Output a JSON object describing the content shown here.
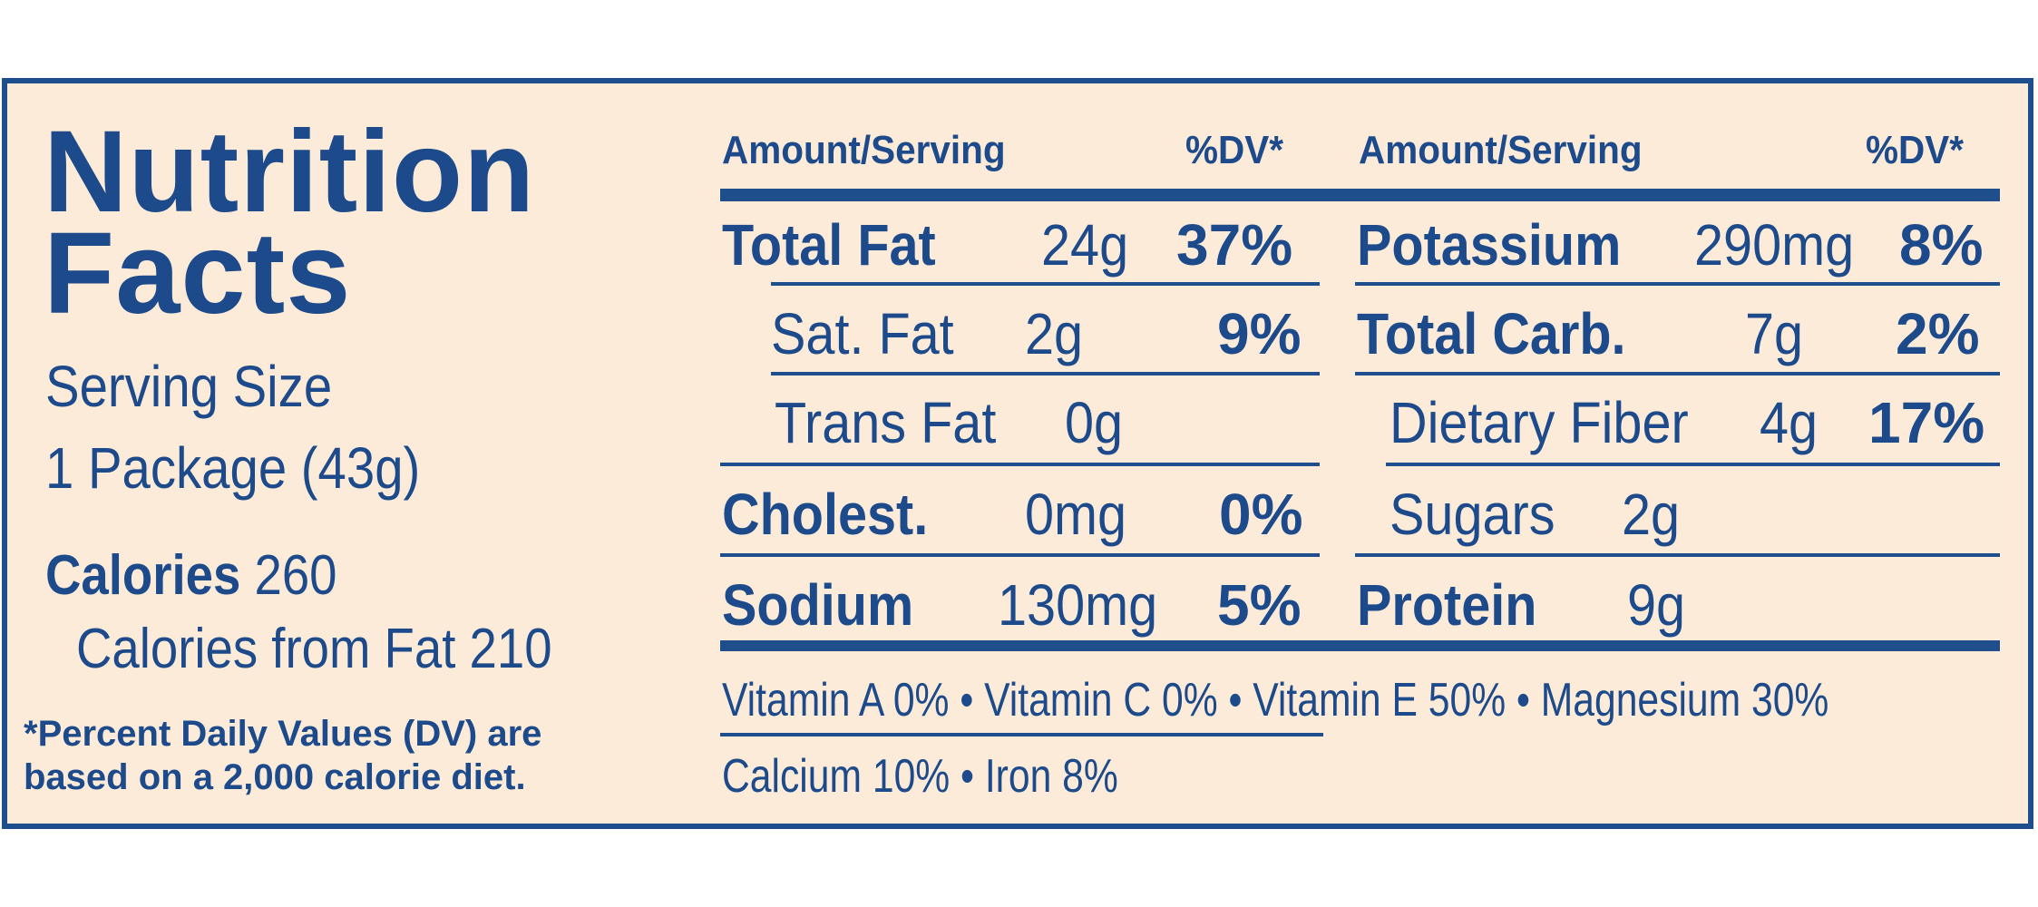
{
  "title": {
    "line1": "Nutrition",
    "line2": "Facts"
  },
  "serving": {
    "label": "Serving Size",
    "value": "1 Package (43g)"
  },
  "calories": {
    "label": "Calories",
    "value": "260",
    "from_fat": "Calories from Fat 210"
  },
  "footnote": {
    "line1": "*Percent Daily Values (DV) are",
    "line2": "based on a 2,000 calorie diet."
  },
  "headers": {
    "amount": "Amount/Serving",
    "dv": "%DV*"
  },
  "left_rows": [
    {
      "name": "Total Fat",
      "amount": "24g",
      "dv": "37%"
    },
    {
      "name": "Sat. Fat",
      "amount": "2g",
      "dv": "9%"
    },
    {
      "name": "Trans Fat",
      "amount": "0g",
      "dv": ""
    },
    {
      "name": "Cholest.",
      "amount": "0mg",
      "dv": "0%"
    },
    {
      "name": "Sodium",
      "amount": "130mg",
      "dv": "5%"
    }
  ],
  "right_rows": [
    {
      "name": "Potassium",
      "amount": "290mg",
      "dv": "8%"
    },
    {
      "name": "Total Carb.",
      "amount": "7g",
      "dv": "2%"
    },
    {
      "name": "Dietary Fiber",
      "amount": "4g",
      "dv": "17%"
    },
    {
      "name": "Sugars",
      "amount": "2g",
      "dv": ""
    },
    {
      "name": "Protein",
      "amount": "9g",
      "dv": ""
    }
  ],
  "vitamins": {
    "line1": "Vitamin A  0%  •  Vitamin C  0%  •  Vitamin E  50%  •  Magnesium  30%",
    "line2": "Calcium  10%  •  Iron  8%"
  },
  "colors": {
    "text": "#1c4a8a",
    "border": "#1f4e8c",
    "background": "#fdebd9"
  }
}
